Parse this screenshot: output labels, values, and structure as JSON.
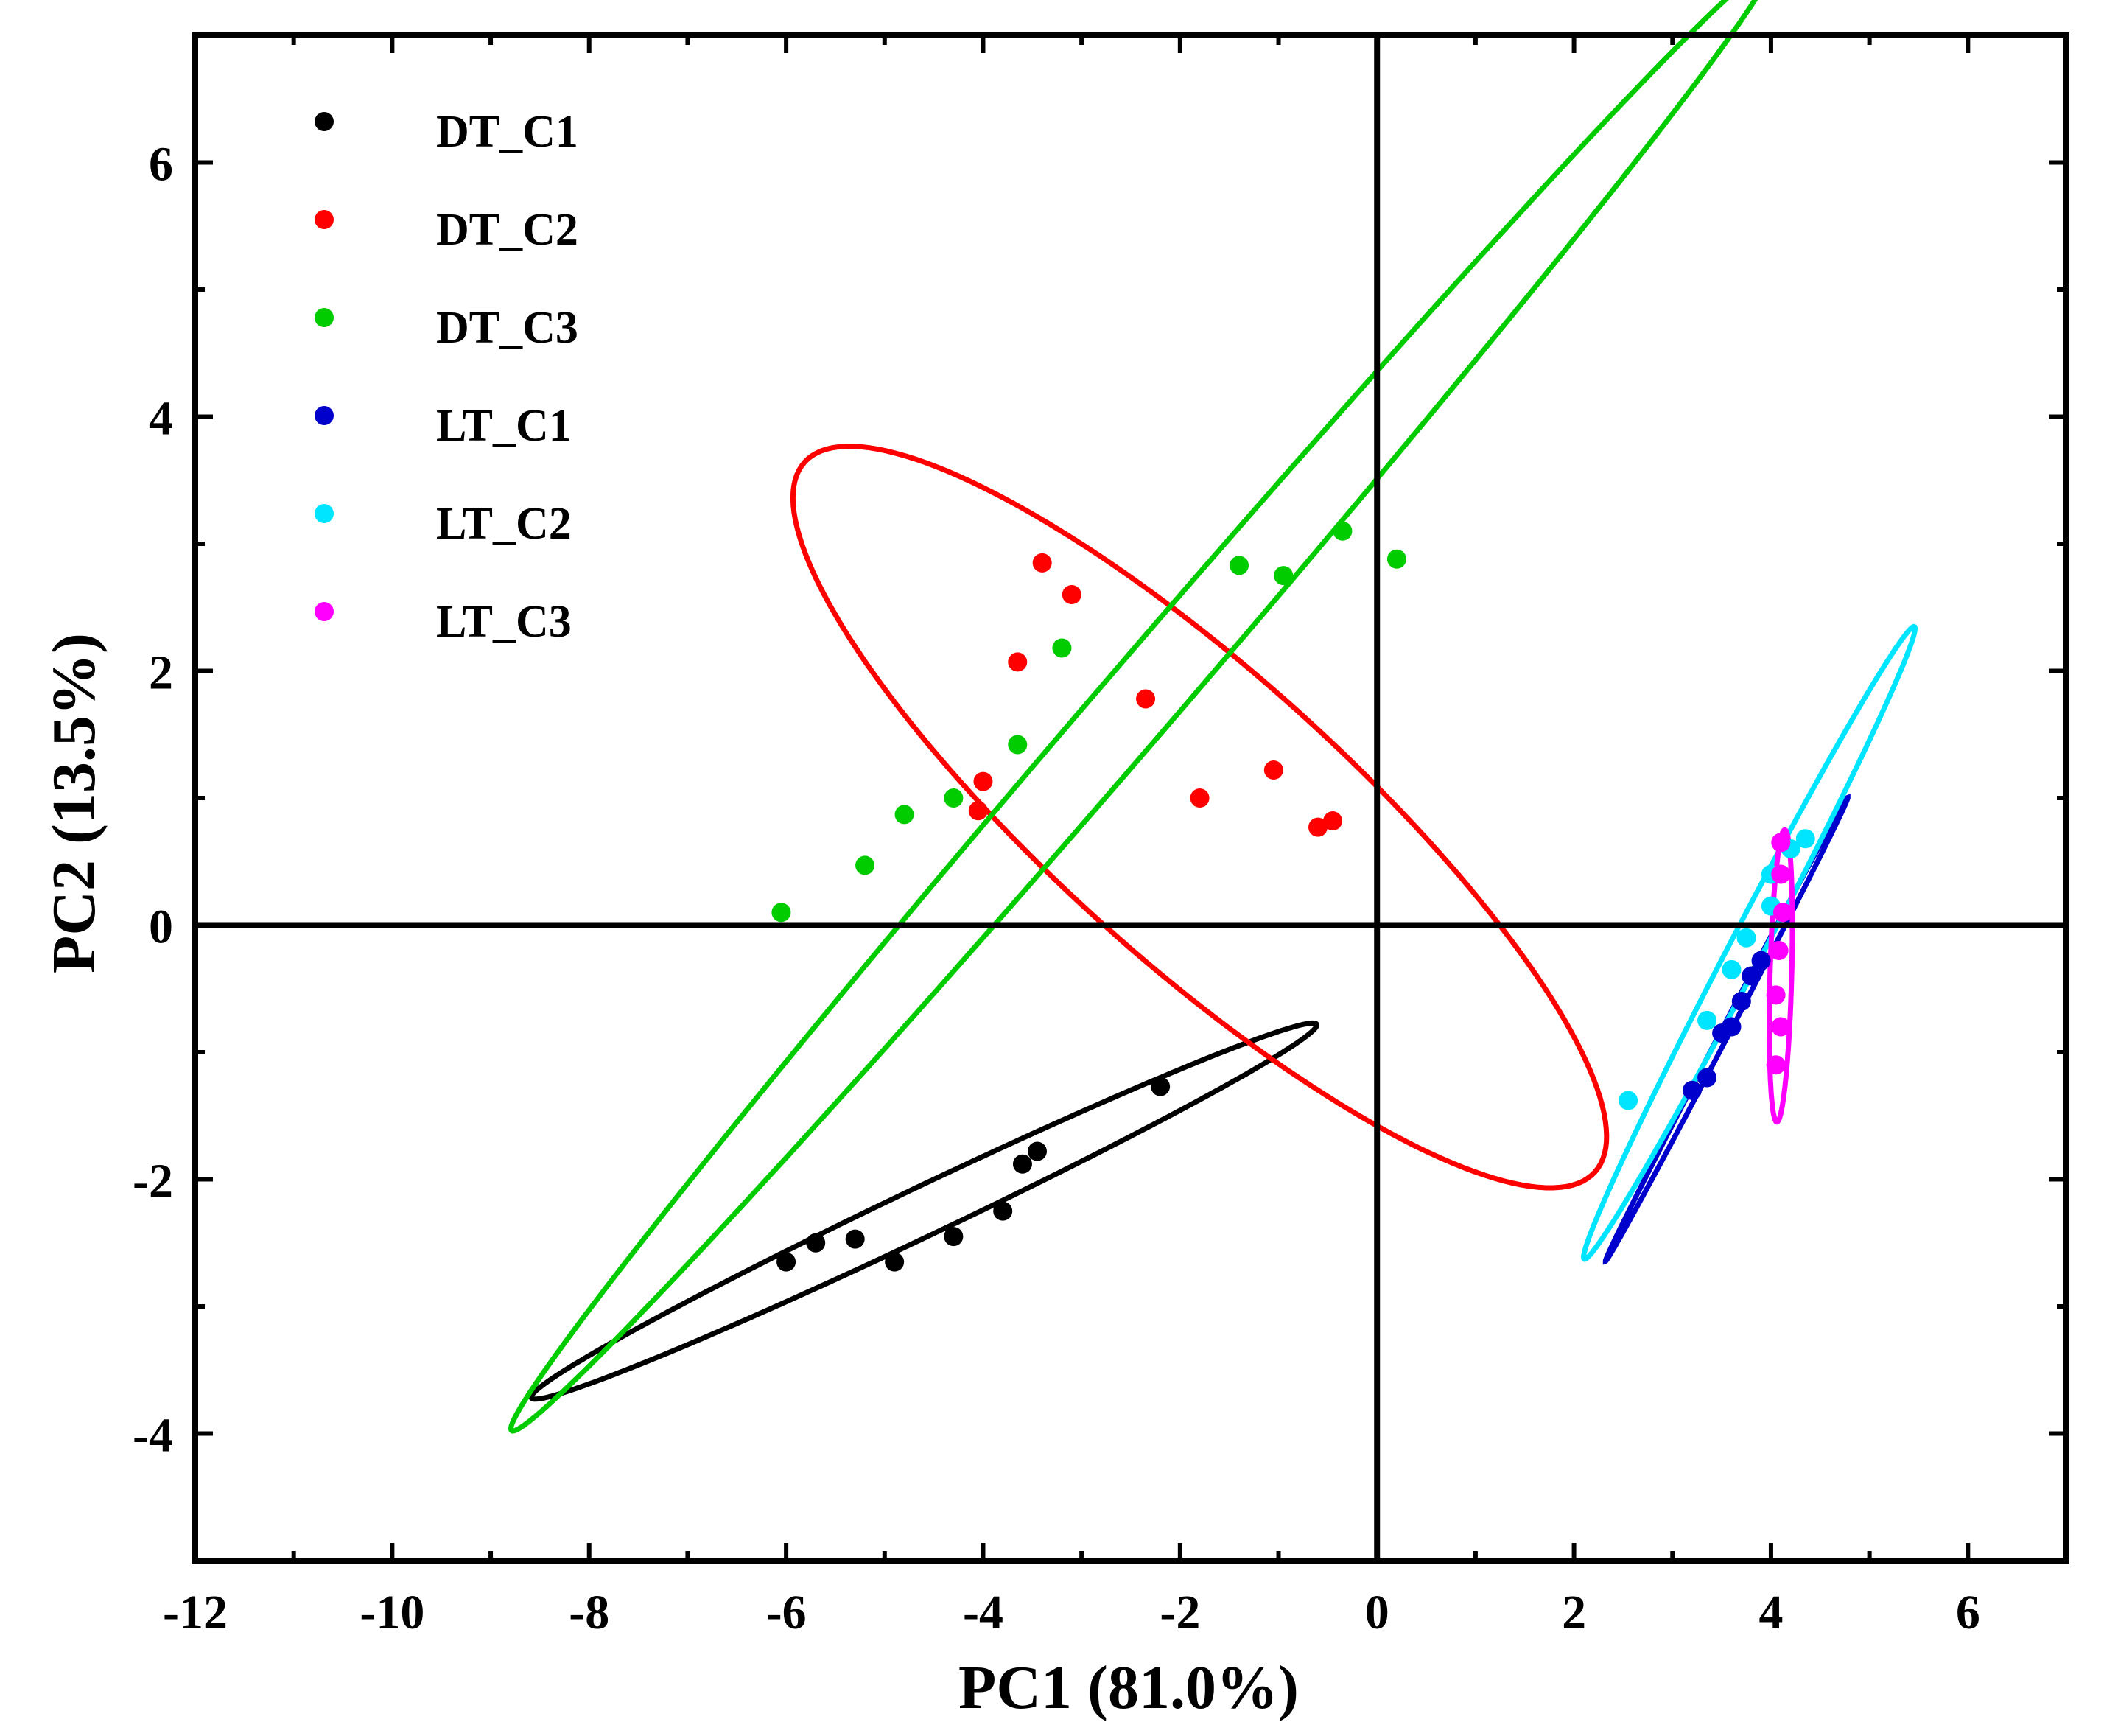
{
  "chart_data": {
    "type": "scatter",
    "title": "",
    "xlabel": "PC1 (81.0%)",
    "ylabel": "PC2 (13.5%)",
    "xlim": [
      -12,
      7
    ],
    "ylim": [
      -5,
      7
    ],
    "xticks": [
      -12,
      -10,
      -8,
      -6,
      -4,
      -2,
      0,
      2,
      4,
      6
    ],
    "yticks": [
      -4,
      -2,
      0,
      2,
      4,
      6
    ],
    "grid": false,
    "zero_lines": true,
    "legend_position": "top-left",
    "series": [
      {
        "name": "DT_C1",
        "color": "#000000",
        "points": [
          [
            -6.0,
            -2.65
          ],
          [
            -5.7,
            -2.5
          ],
          [
            -5.3,
            -2.47
          ],
          [
            -4.9,
            -2.65
          ],
          [
            -4.3,
            -2.45
          ],
          [
            -3.8,
            -2.25
          ],
          [
            -3.6,
            -1.88
          ],
          [
            -3.45,
            -1.78
          ],
          [
            -2.2,
            -1.27
          ]
        ],
        "ellipse": {
          "cx": -4.6,
          "cy": -2.25,
          "rx": 4.25,
          "ry": 0.2,
          "angle_deg": 20.2
        }
      },
      {
        "name": "DT_C2",
        "color": "#ff0000",
        "points": [
          [
            -3.4,
            2.85
          ],
          [
            -3.1,
            2.6
          ],
          [
            -3.65,
            2.07
          ],
          [
            -2.35,
            1.78
          ],
          [
            -4.0,
            1.13
          ],
          [
            -4.05,
            0.9
          ],
          [
            -1.8,
            1.0
          ],
          [
            -1.05,
            1.22
          ],
          [
            -0.6,
            0.77
          ],
          [
            -0.45,
            0.82
          ]
        ],
        "ellipse": {
          "cx": -1.8,
          "cy": 0.85,
          "rx": 4.9,
          "ry": 1.25,
          "angle_deg": -33.8
        }
      },
      {
        "name": "DT_C3",
        "color": "#00cc00",
        "points": [
          [
            -6.05,
            0.1
          ],
          [
            -5.2,
            0.47
          ],
          [
            -4.8,
            0.87
          ],
          [
            -4.3,
            1.0
          ],
          [
            -3.65,
            1.42
          ],
          [
            -3.2,
            2.18
          ],
          [
            -1.4,
            2.83
          ],
          [
            -0.95,
            2.75
          ],
          [
            -0.35,
            3.1
          ],
          [
            0.2,
            2.88
          ]
        ],
        "ellipse": {
          "cx": -2.4,
          "cy": 1.78,
          "rx": 8.6,
          "ry": 0.34,
          "angle_deg": 42.0
        }
      },
      {
        "name": "LT_C1",
        "color": "#0000cc",
        "points": [
          [
            3.2,
            -1.3
          ],
          [
            3.35,
            -1.2
          ],
          [
            3.5,
            -0.85
          ],
          [
            3.6,
            -0.8
          ],
          [
            3.7,
            -0.6
          ],
          [
            3.8,
            -0.4
          ],
          [
            3.9,
            -0.28
          ]
        ],
        "ellipse": {
          "cx": 3.55,
          "cy": -0.82,
          "rx": 2.2,
          "ry": 0.04,
          "angle_deg": 56.0
        }
      },
      {
        "name": "LT_C2",
        "color": "#00e5ff",
        "points": [
          [
            2.55,
            -1.38
          ],
          [
            3.35,
            -0.75
          ],
          [
            3.6,
            -0.35
          ],
          [
            3.75,
            -0.1
          ],
          [
            4.0,
            0.15
          ],
          [
            4.0,
            0.4
          ],
          [
            4.2,
            0.6
          ],
          [
            4.35,
            0.68
          ]
        ],
        "ellipse": {
          "cx": 3.78,
          "cy": -0.14,
          "rx": 3.0,
          "ry": 0.16,
          "angle_deg": 56.0
        }
      },
      {
        "name": "LT_C3",
        "color": "#ff00ff",
        "points": [
          [
            4.1,
            0.65
          ],
          [
            4.1,
            0.4
          ],
          [
            4.12,
            0.1
          ],
          [
            4.08,
            -0.2
          ],
          [
            4.05,
            -0.55
          ],
          [
            4.1,
            -0.8
          ],
          [
            4.05,
            -1.1
          ]
        ],
        "ellipse": {
          "cx": 4.1,
          "cy": -0.4,
          "rx": 1.15,
          "ry": 0.11,
          "angle_deg": 88.0
        }
      }
    ]
  }
}
